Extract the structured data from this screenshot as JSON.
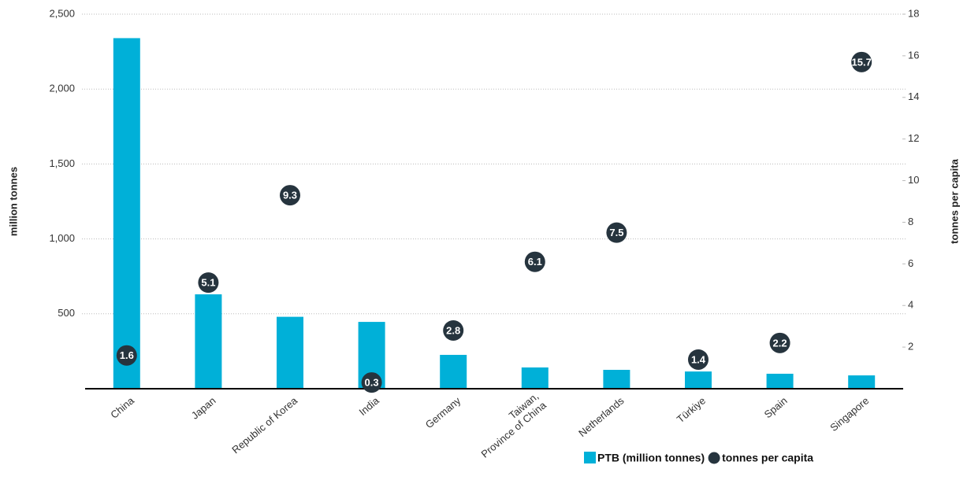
{
  "chart_data": {
    "type": "bar",
    "categories": [
      "China",
      "Japan",
      "Republic of Korea",
      "India",
      "Germany",
      "Taiwan,\nProvince of China",
      "Netherlands",
      "Türkiye",
      "Spain",
      "Singapore"
    ],
    "series": [
      {
        "name": "PTB (million tonnes)",
        "type": "bar",
        "color": "#00b0d8",
        "values": [
          2340,
          630,
          480,
          446,
          226,
          142,
          126,
          115,
          100,
          89
        ]
      },
      {
        "name": "tonnes per capita",
        "type": "scatter",
        "axis": "y2",
        "color": "#26343e",
        "values": [
          1.6,
          5.1,
          9.3,
          0.3,
          2.8,
          6.1,
          7.5,
          1.4,
          2.2,
          15.7
        ]
      }
    ],
    "ylabel": "million tonnes",
    "y2label": "tonnes per capita",
    "ylim": [
      0,
      2500
    ],
    "yticks": [
      500,
      {
        "value": 1000,
        "label": "1,000"
      },
      {
        "value": 1500,
        "label": "1,500"
      },
      {
        "value": 2000,
        "label": "2,000"
      },
      {
        "value": 2500,
        "label": "2,500"
      }
    ],
    "y2lim": [
      0,
      18
    ],
    "y2ticks": [
      2,
      4,
      6,
      8,
      10,
      12,
      14,
      16,
      18
    ],
    "grid": true,
    "legend": "bottom right"
  }
}
